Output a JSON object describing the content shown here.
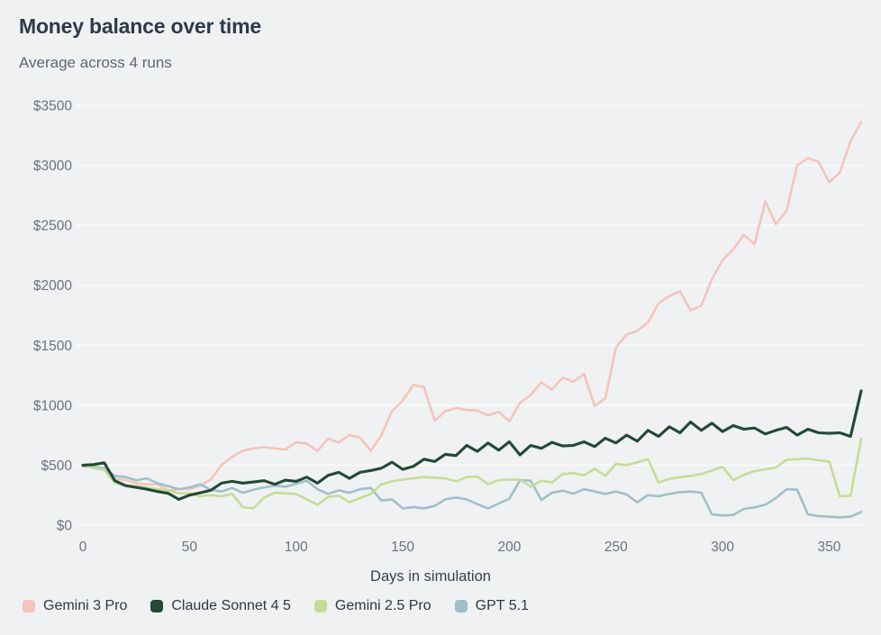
{
  "header": {
    "title": "Money balance over time",
    "subtitle": "Average across 4 runs"
  },
  "colors": {
    "background": "#f0f1f2",
    "gridline": "rgba(255,255,255,0.85)",
    "title_text": "#2e3a49",
    "subtitle_text": "#5d6673",
    "tick_text": "#6a7380",
    "axis_title_text": "#37414e",
    "legend_text": "#2e3844"
  },
  "chart_data": {
    "type": "line",
    "title": "Money balance over time",
    "subtitle": "Average across 4 runs",
    "xlabel": "Days in simulation",
    "y_tick_prefix": "$",
    "xlim": [
      0,
      368
    ],
    "ylim": [
      0,
      3500
    ],
    "grid": "horizontal",
    "legend_position": "bottom-left",
    "x_ticks": [
      0,
      50,
      100,
      150,
      200,
      250,
      300,
      350
    ],
    "y_ticks": [
      0,
      500,
      1000,
      1500,
      2000,
      2500,
      3000,
      3500
    ],
    "y_tick_labels": [
      "$0",
      "$500",
      "$1000",
      "$1500",
      "$2000",
      "$2500",
      "$3000",
      "$3500"
    ],
    "x": [
      0,
      5,
      10,
      15,
      20,
      25,
      30,
      35,
      40,
      45,
      50,
      55,
      60,
      65,
      70,
      75,
      80,
      85,
      90,
      95,
      100,
      105,
      110,
      115,
      120,
      125,
      130,
      135,
      140,
      145,
      150,
      155,
      160,
      165,
      170,
      175,
      180,
      185,
      190,
      195,
      200,
      205,
      210,
      215,
      220,
      225,
      230,
      235,
      240,
      245,
      250,
      255,
      260,
      265,
      270,
      275,
      280,
      285,
      290,
      295,
      300,
      305,
      310,
      315,
      320,
      325,
      330,
      335,
      340,
      345,
      350,
      355,
      360,
      365
    ],
    "series": [
      {
        "name": "Gemini 3 Pro",
        "color": "#f4c4bd",
        "line_width": 2.6,
        "z_index": 1,
        "values": [
          500,
          480,
          470,
          390,
          375,
          350,
          340,
          340,
          290,
          300,
          300,
          330,
          380,
          500,
          570,
          620,
          640,
          650,
          640,
          630,
          690,
          680,
          620,
          720,
          690,
          750,
          730,
          620,
          750,
          950,
          1040,
          1170,
          1150,
          870,
          950,
          975,
          960,
          955,
          915,
          945,
          865,
          1020,
          1085,
          1190,
          1130,
          1230,
          1195,
          1260,
          995,
          1055,
          1480,
          1590,
          1620,
          1690,
          1850,
          1910,
          1950,
          1790,
          1830,
          2050,
          2210,
          2300,
          2420,
          2340,
          2700,
          2510,
          2620,
          3000,
          3060,
          3030,
          2860,
          2940,
          3200,
          3360
        ]
      },
      {
        "name": "Claude Sonnet 4 5",
        "color": "#224936",
        "line_width": 3.1,
        "z_index": 4,
        "values": [
          500,
          505,
          520,
          370,
          330,
          315,
          300,
          280,
          265,
          215,
          250,
          270,
          290,
          350,
          365,
          350,
          360,
          370,
          340,
          375,
          365,
          400,
          350,
          415,
          440,
          390,
          440,
          455,
          475,
          525,
          465,
          490,
          550,
          530,
          590,
          580,
          665,
          615,
          685,
          625,
          695,
          585,
          665,
          640,
          690,
          660,
          665,
          695,
          655,
          725,
          685,
          750,
          700,
          790,
          740,
          820,
          770,
          860,
          790,
          850,
          780,
          830,
          800,
          810,
          760,
          790,
          815,
          750,
          800,
          770,
          765,
          770,
          740,
          1120
        ]
      },
      {
        "name": "Gemini 2.5 Pro",
        "color": "#c6dc97",
        "line_width": 2.6,
        "z_index": 3,
        "values": [
          500,
          475,
          460,
          350,
          330,
          325,
          315,
          300,
          290,
          265,
          265,
          240,
          250,
          240,
          260,
          150,
          140,
          230,
          270,
          265,
          260,
          215,
          170,
          235,
          245,
          190,
          225,
          260,
          340,
          365,
          380,
          390,
          400,
          395,
          390,
          365,
          400,
          405,
          340,
          375,
          380,
          380,
          320,
          370,
          355,
          425,
          435,
          415,
          470,
          410,
          510,
          500,
          525,
          550,
          355,
          385,
          400,
          410,
          425,
          455,
          485,
          375,
          420,
          450,
          465,
          480,
          545,
          550,
          555,
          540,
          530,
          240,
          245,
          720
        ]
      },
      {
        "name": "GPT 5.1",
        "color": "#9fc0c8",
        "line_width": 2.6,
        "z_index": 2,
        "values": [
          490,
          485,
          475,
          410,
          400,
          375,
          390,
          350,
          325,
          300,
          315,
          340,
          295,
          280,
          310,
          270,
          295,
          315,
          330,
          320,
          345,
          370,
          300,
          260,
          290,
          270,
          300,
          310,
          205,
          215,
          140,
          150,
          140,
          160,
          215,
          230,
          215,
          175,
          140,
          180,
          220,
          375,
          370,
          210,
          270,
          287,
          262,
          300,
          280,
          260,
          280,
          255,
          190,
          250,
          240,
          260,
          275,
          280,
          270,
          90,
          80,
          85,
          135,
          148,
          170,
          225,
          300,
          295,
          90,
          75,
          70,
          65,
          70,
          110
        ]
      }
    ]
  }
}
